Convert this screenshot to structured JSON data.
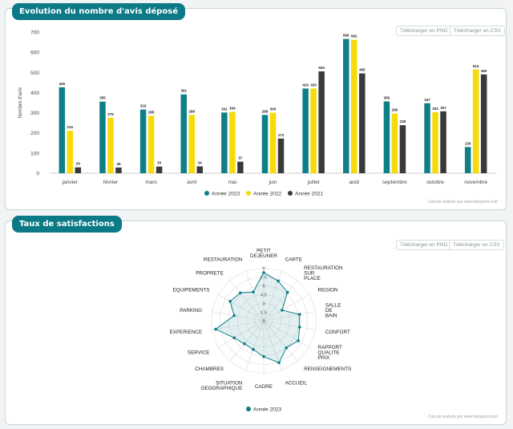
{
  "section1": {
    "title": "Evolution du nombre d'avis déposé",
    "download_png": "Télécharger en PNG",
    "download_csv": "Télécharger en CSV",
    "credit": "Calculs réalisés par www.fairguest.com"
  },
  "section2": {
    "title": "Taux de satisfactions",
    "download_png": "Télécharger en PNG",
    "download_csv": "Télécharger en CSV",
    "credit": "Calculs réalisés par www.fairguest.com"
  },
  "colors": {
    "teal": "#0e7f87",
    "yellow": "#f6da0a",
    "dark": "#393939",
    "brand": "#0b7a86"
  },
  "chart_data": [
    {
      "type": "bar",
      "ylabel": "Nombre d'avis",
      "ylim": [
        0,
        700
      ],
      "yticks": [
        0,
        100,
        200,
        300,
        400,
        500,
        600,
        700
      ],
      "categories": [
        "janvier",
        "février",
        "mars",
        "avril",
        "mai",
        "juin",
        "juillet",
        "août",
        "septembre",
        "octobre",
        "novembre"
      ],
      "series": [
        {
          "name": "Année 2023",
          "color": "#0e7f87",
          "values": [
            426,
            355,
            316,
            391,
            301,
            289,
            420,
            666,
            356,
            347,
            130
          ]
        },
        {
          "name": "Année 2022",
          "color": "#f6da0a",
          "values": [
            210,
            275,
            285,
            289,
            304,
            300,
            420,
            662,
            296,
            303,
            514
          ]
        },
        {
          "name": "Année 2021",
          "color": "#393939",
          "values": [
            29,
            28,
            33,
            34,
            57,
            172,
            505,
            495,
            238,
            307,
            490
          ]
        }
      ],
      "legend_position": "bottom",
      "grid": false
    },
    {
      "type": "radar",
      "rlim": [
        0,
        9
      ],
      "rticks": [
        "0",
        "1.5",
        "3",
        "4.5",
        "6",
        "7.5",
        "9"
      ],
      "categories": [
        "PETIT DEJEUNER",
        "CARTE",
        "RESTAURATION SUR PLACE",
        "REGION",
        "SALLE DE BAIN",
        "CONFORT",
        "RAPPORT QUALITE PRIX",
        "RENSEIGNEMENTS",
        "ACCUEIL",
        "CADRE",
        "SITUATION GEOGRAPHIQUE",
        "CHAMBRES",
        "SERVICE",
        "EXPERIENCE",
        "PARKING",
        "EQUIPEMENTS",
        "PROPRETE",
        "RESTAURATION"
      ],
      "series": [
        {
          "name": "Année 2023",
          "color": "#0e7f87",
          "values": [
            8.2,
            7.2,
            6.3,
            3.6,
            6.2,
            6.2,
            6.8,
            6.0,
            7.6,
            6.1,
            5.2,
            5.1,
            5.8,
            8.3,
            5.1,
            6.6,
            6.2,
            5.2
          ]
        }
      ],
      "legend_position": "bottom",
      "grid": true
    }
  ]
}
